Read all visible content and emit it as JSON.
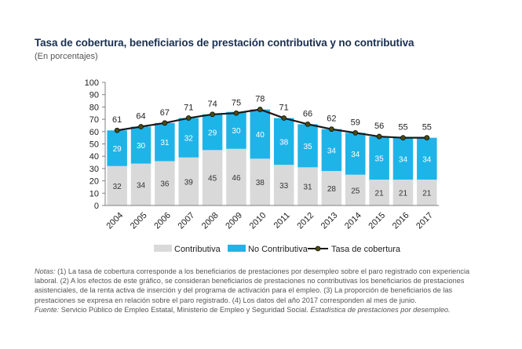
{
  "title": "Tasa de cobertura, beneficiarios de prestación contributiva y no contributiva",
  "subtitle": "(En porcentajes)",
  "notes": {
    "label": "Notas:",
    "text": " (1) La tasa de cobertura corresponde a los beneficiarios de prestaciones por desempleo sobre el paro registrado con experiencia laboral.  (2) A los efectos de este gráfico, se consideran beneficiarios de prestaciones no contributivas los beneficiarios de prestaciones asistenciales, de la renta activa de inserción y del programa de activación para el empleo. (3) La proporción de beneficiarios de las prestaciones se expresa en relación sobre el paro registrado. (4) Los datos del año 2017 corresponden al mes de junio."
  },
  "source": {
    "label": "Fuente:",
    "text": " Servicio Público de Empleo Estatal, Ministerio de Empleo y Seguridad Social. ",
    "publication": "Estadística de prestaciones por desempleo."
  },
  "colors": {
    "contributiva": "#d9d9d9",
    "no_contributiva": "#1fb4e8",
    "tasa": "#1a1a1a",
    "marker": "#4a4a10",
    "axis": "#7f7f7f",
    "text": "#333333"
  },
  "chart_data": {
    "type": "bar",
    "stacked": true,
    "categories": [
      "2004",
      "2005",
      "2006",
      "2007",
      "2008",
      "2009",
      "2010",
      "2011",
      "2012",
      "2013",
      "2014",
      "2015",
      "2016",
      "2017"
    ],
    "series": [
      {
        "name": "Contributiva",
        "type": "bar",
        "values": [
          32,
          34,
          36,
          39,
          45,
          46,
          38,
          33,
          31,
          28,
          25,
          21,
          21,
          21
        ]
      },
      {
        "name": "No Contributiva",
        "type": "bar",
        "values": [
          29,
          30,
          31,
          32,
          29,
          30,
          40,
          38,
          35,
          34,
          34,
          35,
          34,
          34
        ]
      },
      {
        "name": "Tasa de cobertura",
        "type": "line",
        "values": [
          61,
          64,
          67,
          71,
          74,
          75,
          78,
          71,
          66,
          62,
          59,
          56,
          55,
          55
        ]
      }
    ],
    "ylim": [
      0,
      100
    ],
    "yticks": [
      0,
      10,
      20,
      30,
      40,
      50,
      60,
      70,
      80,
      90,
      100
    ],
    "grid": false,
    "legend_position": "bottom"
  }
}
